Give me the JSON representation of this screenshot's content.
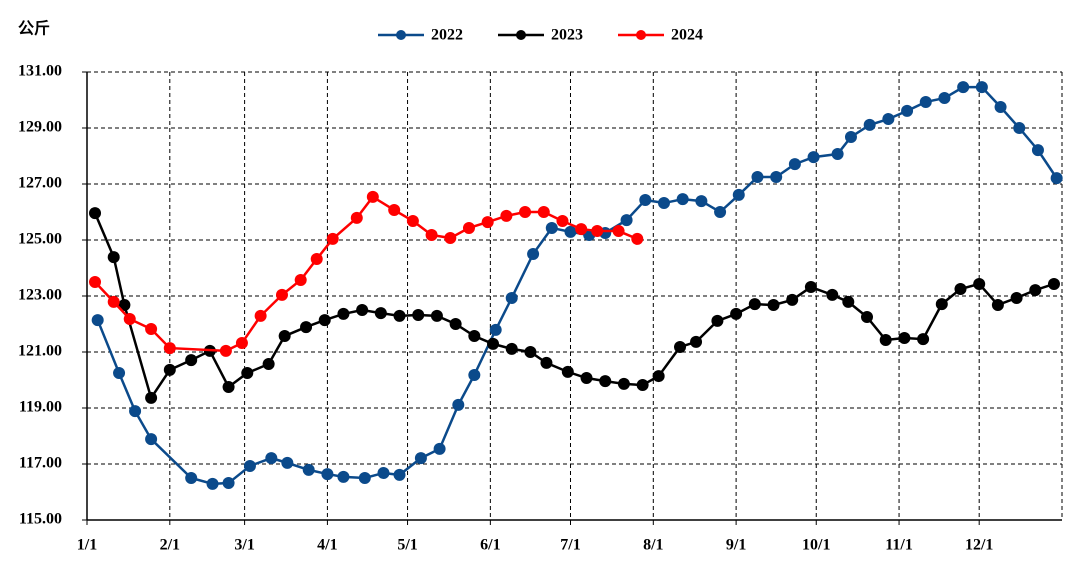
{
  "chart_data": {
    "type": "line",
    "y_label": "公斤",
    "xlim": [
      0,
      365
    ],
    "xticks": [
      {
        "value": 0,
        "label": "1/1"
      },
      {
        "value": 31,
        "label": "2/1"
      },
      {
        "value": 59,
        "label": "3/1"
      },
      {
        "value": 90,
        "label": "4/1"
      },
      {
        "value": 120,
        "label": "5/1"
      },
      {
        "value": 151,
        "label": "6/1"
      },
      {
        "value": 181,
        "label": "7/1"
      },
      {
        "value": 212,
        "label": "8/1"
      },
      {
        "value": 243,
        "label": "9/1"
      },
      {
        "value": 273,
        "label": "10/1"
      },
      {
        "value": 304,
        "label": "11/1"
      },
      {
        "value": 334,
        "label": "12/1"
      }
    ],
    "ylim": [
      115,
      131
    ],
    "yticks": [
      {
        "value": 115,
        "label": "115.00"
      },
      {
        "value": 117,
        "label": "117.00"
      },
      {
        "value": 119,
        "label": "119.00"
      },
      {
        "value": 121,
        "label": "121.00"
      },
      {
        "value": 123,
        "label": "123.00"
      },
      {
        "value": 125,
        "label": "125.00"
      },
      {
        "value": 127,
        "label": "127.00"
      },
      {
        "value": 129,
        "label": "129.00"
      },
      {
        "value": 131,
        "label": "131.00"
      }
    ],
    "grid": true,
    "series": [
      {
        "name": "2022",
        "color": "#0b4a8b",
        "x": [
          4,
          12,
          18,
          24,
          39,
          47,
          53,
          61,
          69,
          75,
          83,
          90,
          96,
          104,
          111,
          117,
          125,
          132,
          139,
          145,
          153,
          159,
          167,
          174,
          181,
          188,
          194,
          202,
          209,
          216,
          223,
          230,
          237,
          244,
          251,
          258,
          265,
          272,
          281,
          286,
          293,
          300,
          307,
          314,
          321,
          328,
          335,
          342,
          349,
          356,
          363
        ],
        "values": [
          122.14,
          120.25,
          118.89,
          117.89,
          116.5,
          116.29,
          116.32,
          116.93,
          117.21,
          117.04,
          116.79,
          116.64,
          116.54,
          116.5,
          116.68,
          116.61,
          117.21,
          117.54,
          119.11,
          120.18,
          121.79,
          122.93,
          124.5,
          125.43,
          125.29,
          125.18,
          125.25,
          125.71,
          126.43,
          126.32,
          126.46,
          126.39,
          126.0,
          126.61,
          127.25,
          127.25,
          127.71,
          127.96,
          128.07,
          128.68,
          129.11,
          129.32,
          129.61,
          129.93,
          130.07,
          130.46,
          130.46,
          129.75,
          129.0,
          128.21,
          127.21
        ]
      },
      {
        "name": "2023",
        "color": "#000000",
        "x": [
          3,
          10,
          14,
          24,
          31,
          39,
          46,
          53,
          60,
          68,
          74,
          82,
          89,
          96,
          103,
          110,
          117,
          124,
          131,
          138,
          145,
          152,
          159,
          166,
          172,
          180,
          187,
          194,
          201,
          208,
          214,
          222,
          228,
          236,
          243,
          250,
          257,
          264,
          271,
          279,
          285,
          292,
          299,
          306,
          313,
          320,
          327,
          334,
          341,
          348,
          355,
          362
        ],
        "values": [
          125.96,
          124.39,
          122.68,
          119.36,
          120.36,
          120.71,
          121.04,
          119.75,
          120.25,
          120.57,
          121.57,
          121.89,
          122.14,
          122.36,
          122.5,
          122.39,
          122.29,
          122.32,
          122.29,
          122.0,
          121.57,
          121.29,
          121.11,
          121.0,
          120.61,
          120.29,
          120.07,
          119.96,
          119.86,
          119.82,
          120.14,
          121.18,
          121.36,
          122.11,
          122.36,
          122.71,
          122.68,
          122.86,
          123.32,
          123.04,
          122.79,
          122.25,
          121.43,
          121.5,
          121.46,
          122.71,
          123.25,
          123.43,
          122.68,
          122.93,
          123.21,
          123.43
        ]
      },
      {
        "name": "2024",
        "color": "#ff0000",
        "x": [
          3,
          10,
          16,
          24,
          31,
          52,
          58,
          65,
          73,
          80,
          86,
          92,
          101,
          107,
          115,
          122,
          129,
          136,
          143,
          150,
          157,
          164,
          171,
          178,
          185,
          191,
          199,
          206
        ],
        "values": [
          123.5,
          122.79,
          122.18,
          121.82,
          121.14,
          121.04,
          121.32,
          122.29,
          123.04,
          123.57,
          124.32,
          125.04,
          125.79,
          126.54,
          126.07,
          125.68,
          125.18,
          125.07,
          125.43,
          125.64,
          125.86,
          126.0,
          126.0,
          125.68,
          125.39,
          125.32,
          125.32,
          125.04
        ]
      }
    ]
  }
}
